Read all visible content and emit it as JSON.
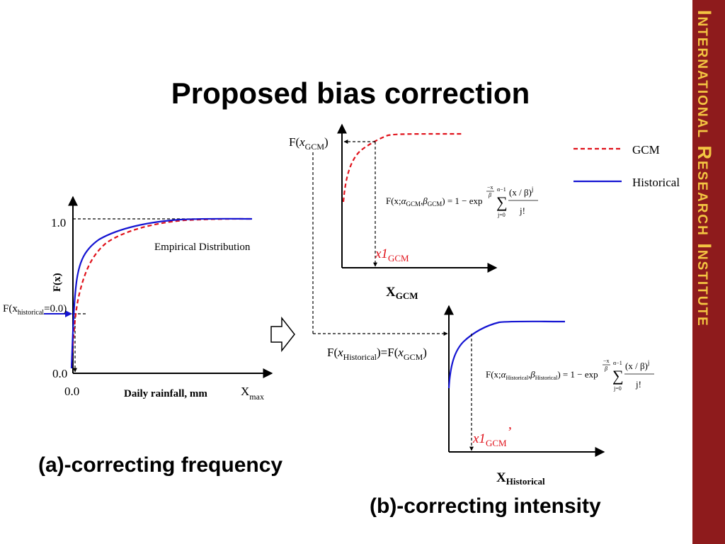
{
  "title": "Proposed bias correction",
  "sidebar": {
    "text": "International Research Institute",
    "bg_color": "#8e1b1c",
    "text_color": "#f3c542"
  },
  "panel_a": {
    "caption": "(a)-correcting frequency",
    "ytick_1": "1.0",
    "ytick_0": "0.0",
    "xtick_0": "0.0",
    "ylabel": "F(x)",
    "xlabel": "Daily rainfall, mm",
    "xmax_main": "X",
    "xmax_sub": "max",
    "curve_label": "Empirical Distribution",
    "marker_pre": "F(x",
    "marker_sub": "historical",
    "marker_post": "=0.0)"
  },
  "panel_b": {
    "caption": "(b)-correcting intensity",
    "gcm_ylabel_pre": "F(",
    "gcm_ylabel_x": "x",
    "gcm_ylabel_sub": "GCM",
    "gcm_ylabel_post": ")",
    "gcm_x1_main": "x1",
    "gcm_x1_sub": "GCM",
    "gcm_xlabel": "X",
    "gcm_xlabel_sub": "GCM",
    "hist_ylabel_pre": "F(",
    "hist_ylabel_x": "x",
    "hist_ylabel_sub": "Historical",
    "hist_ylabel_mid": ")=F(",
    "hist_ylabel_x2": "x",
    "hist_ylabel_sub2": "GCM",
    "hist_ylabel_post": ")",
    "hist_x1_main": "x1",
    "hist_x1_sub": "GCM",
    "hist_x1_prime": "’",
    "hist_xlabel": "X",
    "hist_xlabel_sub": "Historical",
    "formula_gcm": {
      "pre": "F(x;",
      "alpha": "α",
      "alpha_sub": "GCM",
      "comma": ",",
      "beta": "β",
      "beta_sub": "GCM",
      "post": ") = 1 − exp",
      "exp_num": "−x",
      "exp_den": "β",
      "sum_top": "α−1",
      "sum_sym": "∑",
      "sum_bot": "j=0",
      "frac_num": "(x / β)",
      "frac_num_sup": "j",
      "frac_den": "j!"
    },
    "formula_hist": {
      "pre": "F(x;",
      "alpha": "α",
      "alpha_sub": "Historical",
      "comma": ",",
      "beta": "β",
      "beta_sub": "Historical",
      "post": ") = 1 − exp",
      "exp_num": "−x",
      "exp_den": "β",
      "sum_top": "α−1",
      "sum_sym": "∑",
      "sum_bot": "j=0",
      "frac_num": "(x / β)",
      "frac_num_sup": "j",
      "frac_den": "j!"
    }
  },
  "legend": [
    {
      "name": "GCM",
      "color": "#e0121b",
      "style": "dashed"
    },
    {
      "name": "Historical",
      "color": "#1414d2",
      "style": "solid"
    }
  ]
}
